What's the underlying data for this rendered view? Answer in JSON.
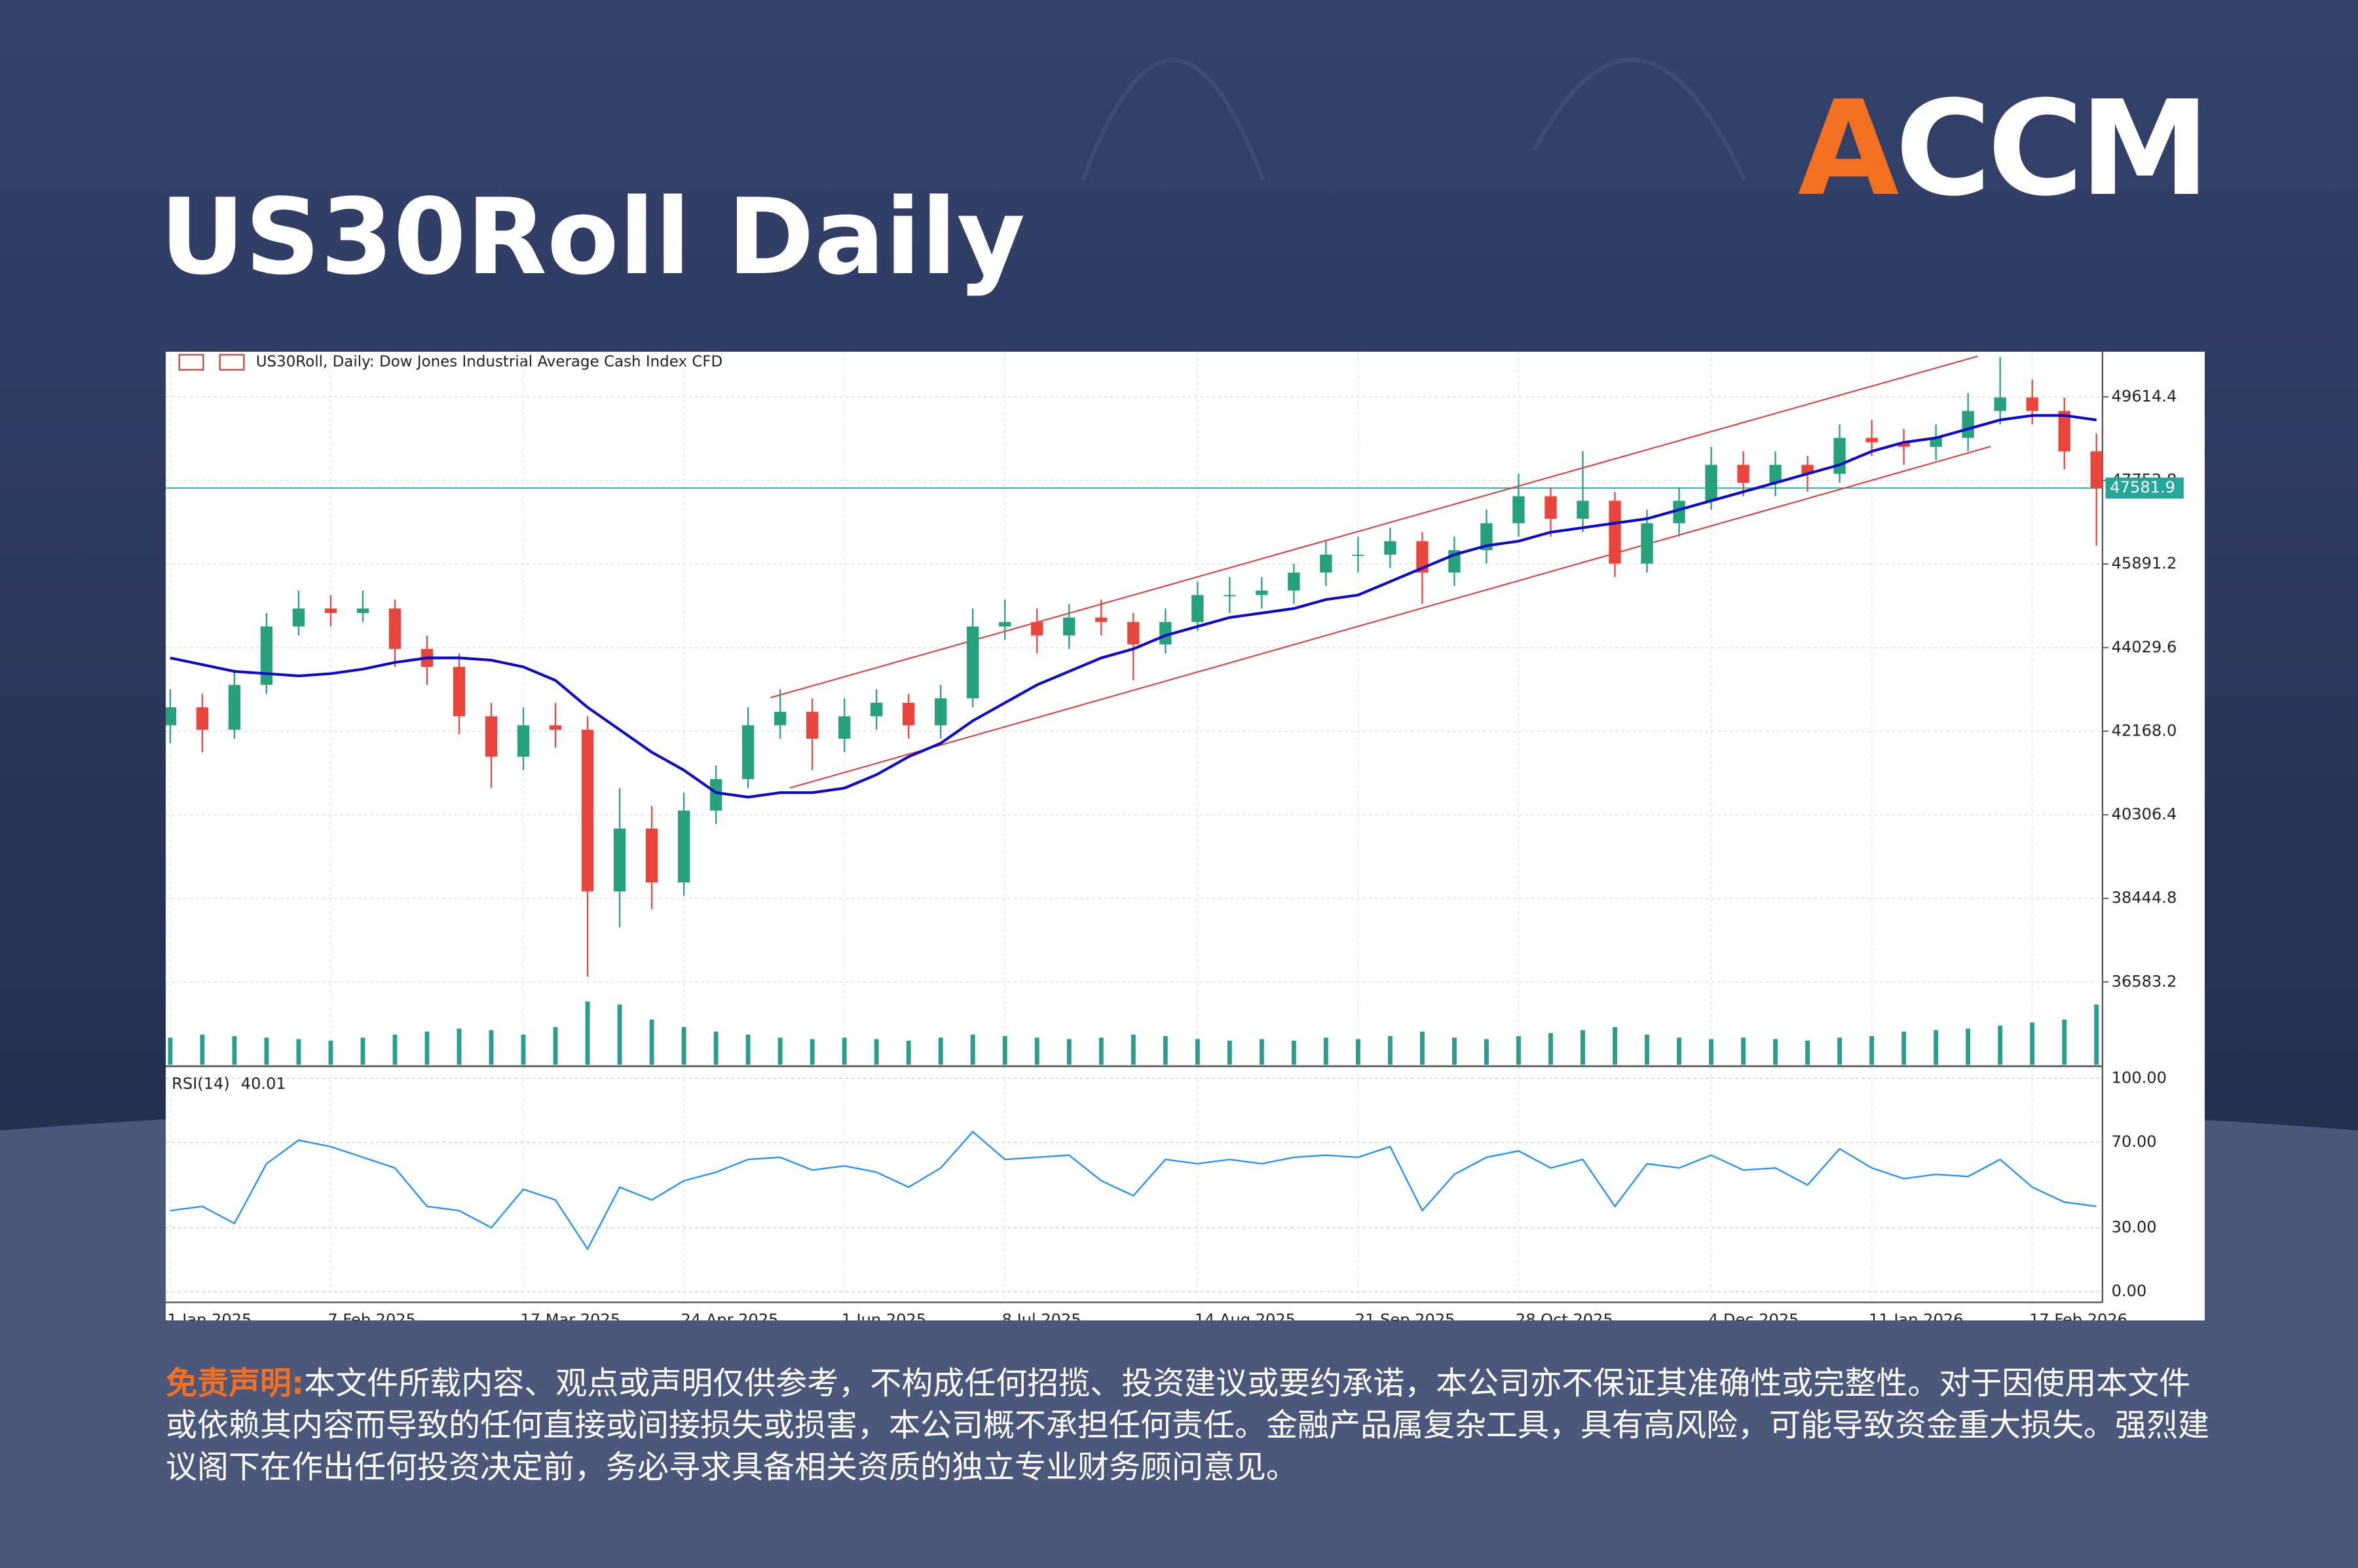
{
  "header": {
    "title": "US30Roll Daily",
    "logo": "ACCM"
  },
  "chart_data": {
    "type": "candlestick",
    "subtitle": "US30Roll, Daily:  Dow Jones Industrial Average Cash Index CFD",
    "categories": [
      "1 Jan 2025",
      null,
      null,
      null,
      null,
      "7 Feb 2025",
      null,
      null,
      null,
      null,
      null,
      "17 Mar 2025",
      null,
      null,
      null,
      null,
      "24 Apr 2025",
      null,
      null,
      null,
      null,
      "1 Jun 2025",
      null,
      null,
      null,
      null,
      "8 Jul 2025",
      null,
      null,
      null,
      null,
      null,
      "14 Aug 2025",
      null,
      null,
      null,
      null,
      "21 Sep 2025",
      null,
      null,
      null,
      null,
      "28 Oct 2025",
      null,
      null,
      null,
      null,
      null,
      "4 Dec 2025",
      null,
      null,
      null,
      null,
      "11 Jan 2026",
      null,
      null,
      null,
      null,
      "17 Feb 2026",
      null,
      null
    ],
    "open": [
      42300,
      42700,
      42200,
      43200,
      44500,
      44900,
      44800,
      44900,
      44000,
      43600,
      42500,
      41600,
      42300,
      42200,
      38600,
      40000,
      38800,
      40400,
      41100,
      42300,
      42600,
      42000,
      42500,
      42800,
      42300,
      42900,
      44500,
      44600,
      44300,
      44700,
      44600,
      44100,
      44600,
      45200,
      45200,
      45300,
      45700,
      46100,
      46100,
      46400,
      45700,
      46200,
      46800,
      47400,
      46900,
      47300,
      45900,
      46800,
      47300,
      48100,
      47700,
      48100,
      47900,
      48700,
      48600,
      48500,
      48700,
      49300,
      49600,
      49300,
      48400
    ],
    "high": [
      43100,
      43000,
      43500,
      44800,
      45300,
      45200,
      45300,
      45100,
      44300,
      43900,
      42800,
      42700,
      42800,
      42500,
      40900,
      40500,
      40800,
      41400,
      42700,
      43100,
      42900,
      42900,
      43100,
      43000,
      43200,
      44900,
      45100,
      44900,
      45000,
      45100,
      44800,
      44900,
      45500,
      45600,
      45600,
      45900,
      46400,
      46500,
      46700,
      46600,
      46500,
      47100,
      47900,
      47600,
      48400,
      47500,
      47100,
      47600,
      48500,
      48400,
      48400,
      48300,
      49000,
      49100,
      48900,
      49000,
      49700,
      50500,
      50000,
      49600,
      48800
    ],
    "low": [
      41900,
      41700,
      42000,
      43000,
      44300,
      44500,
      44600,
      43600,
      43200,
      42100,
      40900,
      41300,
      41800,
      36700,
      37800,
      38200,
      38500,
      40100,
      40900,
      42000,
      41300,
      41700,
      42200,
      42000,
      42000,
      42700,
      44200,
      43900,
      44000,
      44300,
      43300,
      43900,
      44400,
      44800,
      44900,
      45000,
      45400,
      45700,
      45800,
      45000,
      45400,
      45900,
      46500,
      46500,
      46600,
      45600,
      45700,
      46500,
      47100,
      47400,
      47400,
      47500,
      47700,
      48300,
      48100,
      48200,
      48400,
      49000,
      49000,
      48000,
      46300
    ],
    "close": [
      42700,
      42200,
      43200,
      44500,
      44900,
      44800,
      44900,
      44000,
      43600,
      42500,
      41600,
      42300,
      42200,
      38600,
      40000,
      38800,
      40400,
      41100,
      42300,
      42600,
      42000,
      42500,
      42800,
      42300,
      42900,
      44500,
      44600,
      44300,
      44700,
      44600,
      44100,
      44600,
      45200,
      45200,
      45300,
      45700,
      46100,
      46100,
      46400,
      45700,
      46200,
      46800,
      47400,
      46900,
      47300,
      45900,
      46800,
      47300,
      48100,
      47700,
      48100,
      47900,
      48700,
      48600,
      48500,
      48700,
      49300,
      49600,
      49300,
      48400,
      47581.9
    ],
    "up_color": "#26a17b",
    "down_color": "#e8453c",
    "ma": {
      "color": "#0a0ac8",
      "values": [
        43800,
        43650,
        43500,
        43450,
        43400,
        43450,
        43550,
        43700,
        43800,
        43800,
        43750,
        43600,
        43300,
        42700,
        42200,
        41700,
        41300,
        40800,
        40700,
        40800,
        40800,
        40900,
        41200,
        41600,
        41900,
        42400,
        42800,
        43200,
        43500,
        43800,
        44000,
        44300,
        44500,
        44700,
        44800,
        44900,
        45100,
        45200,
        45500,
        45800,
        46100,
        46300,
        46400,
        46600,
        46700,
        46800,
        46900,
        47100,
        47300,
        47500,
        47700,
        47900,
        48100,
        48400,
        48600,
        48700,
        48900,
        49100,
        49200,
        49200,
        49100
      ]
    },
    "channel": {
      "color": "#e03a3a",
      "lines": [
        {
          "x": [
            18.7,
            56.3
          ],
          "y": [
            42915,
            50519
          ]
        },
        {
          "x": [
            19.3,
            56.7
          ],
          "y": [
            40904,
            48508
          ]
        }
      ]
    },
    "last_price": {
      "value": 47581.9,
      "color": "#26a69a"
    },
    "ylim": [
      34741,
      50619
    ],
    "yticks": [
      49614.4,
      47752.8,
      45891.2,
      44029.6,
      {
        "value": 42168,
        "label": "42168.0"
      },
      40306.4,
      38444.8,
      36583.2
    ],
    "grid": true,
    "volume": {
      "color": "#2a9d8f",
      "ylim": [
        0,
        50
      ],
      "values": [
        18,
        20,
        19,
        18,
        17,
        16,
        18,
        20,
        22,
        24,
        23,
        20,
        25,
        42,
        40,
        30,
        25,
        22,
        20,
        18,
        17,
        18,
        17,
        16,
        18,
        20,
        19,
        18,
        17,
        18,
        20,
        19,
        17,
        16,
        17,
        16,
        18,
        17,
        19,
        22,
        18,
        17,
        19,
        21,
        23,
        25,
        20,
        18,
        17,
        18,
        17,
        16,
        18,
        19,
        22,
        23,
        24,
        26,
        28,
        30,
        40
      ]
    },
    "rsi": {
      "label": "RSI(14)",
      "color": "#1e8fff",
      "ylim": [
        -5,
        105
      ],
      "yticks": [
        {
          "value": 100,
          "label": "100.00"
        },
        {
          "value": 70,
          "label": "70.00"
        },
        {
          "value": 30,
          "label": "30.00"
        },
        {
          "value": 0,
          "label": "0.00"
        }
      ],
      "values": [
        38,
        40,
        32,
        60,
        71,
        68,
        63,
        58,
        40,
        38,
        30,
        48,
        43,
        20,
        49,
        43,
        52,
        56,
        62,
        63,
        57,
        59,
        56,
        49,
        58,
        75,
        62,
        63,
        64,
        52,
        45,
        62,
        60,
        62,
        60,
        63,
        64,
        63,
        68,
        38,
        55,
        63,
        66,
        58,
        62,
        40,
        60,
        58,
        64,
        57,
        58,
        50,
        67,
        58,
        53,
        55,
        54,
        62,
        49,
        42,
        40.01
      ]
    }
  },
  "disclaimer": {
    "label": "免责声明:",
    "text": "本文件所载内容、观点或声明仅供参考，不构成任何招揽、投资建议或要约承诺，本公司亦不保证其准确性或完整性。对于因使用本文件或依赖其内容而导致的任何直接或间接损失或损害，本公司概不承担任何责任。金融产品属复杂工具，具有高风险，可能导致资金重大损失。强烈建议阁下在作出任何投资决定前，务必寻求具备相关资质的独立专业财务顾问意见。"
  }
}
